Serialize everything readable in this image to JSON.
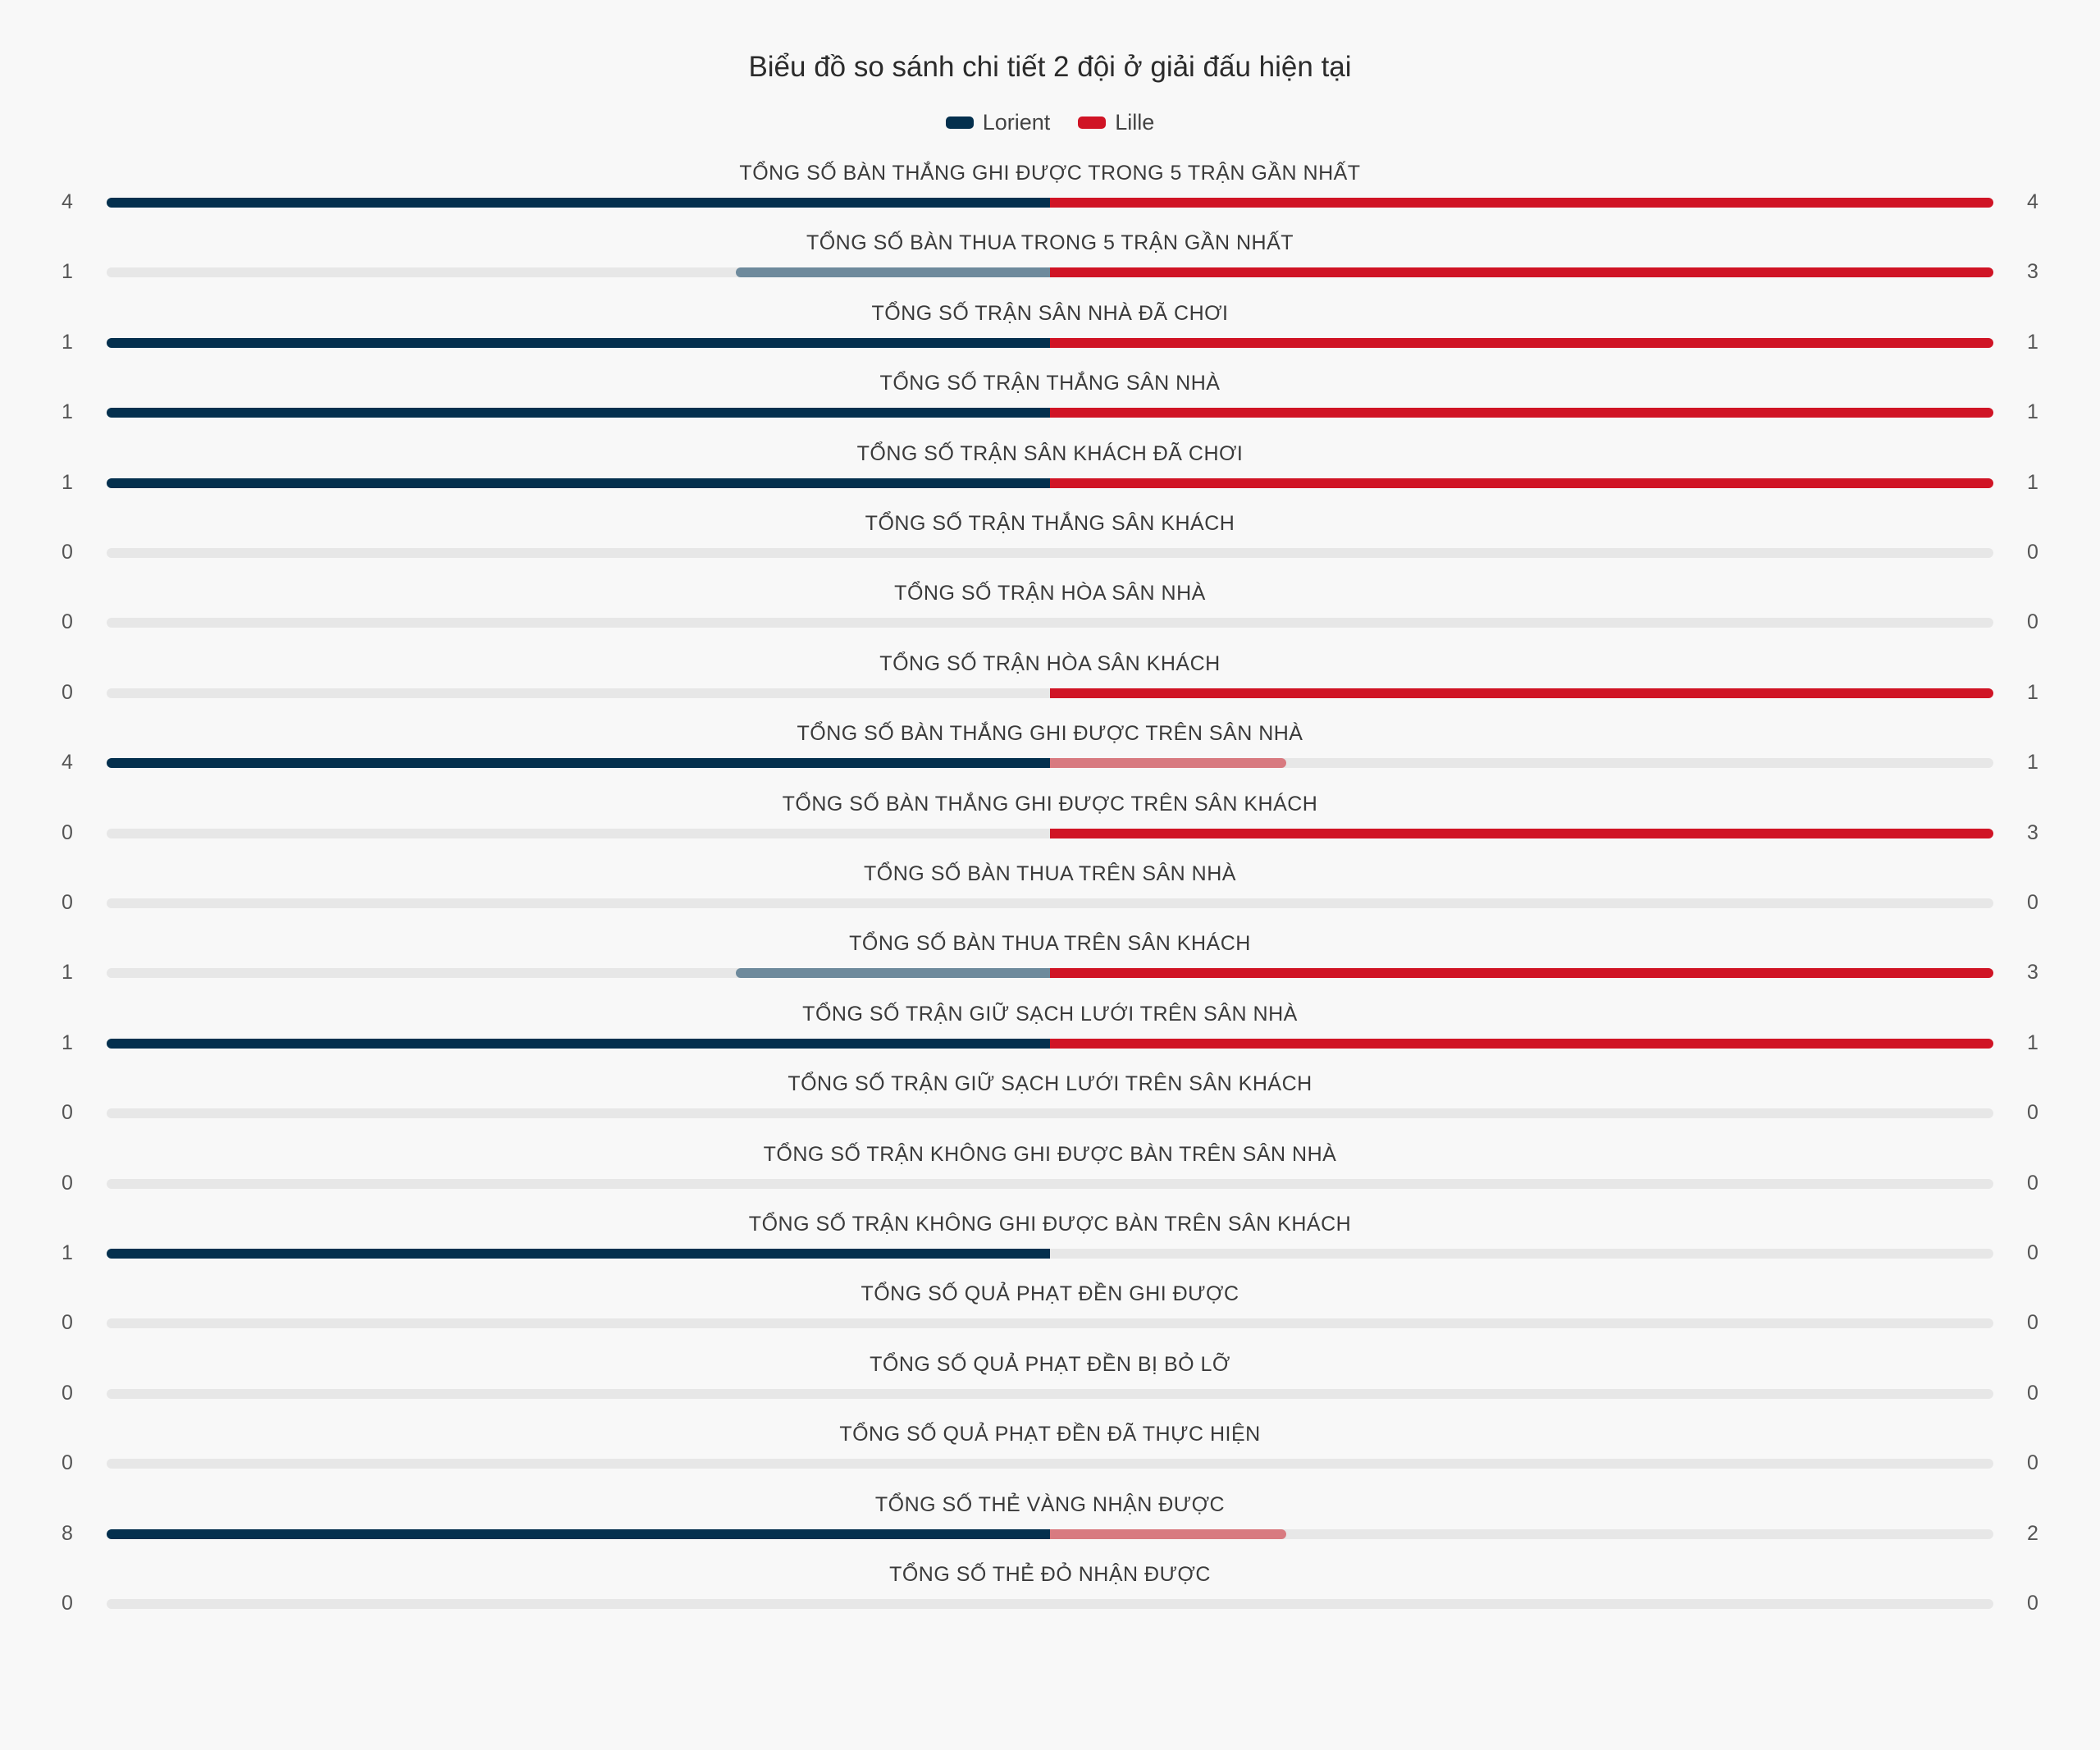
{
  "chart_data": {
    "type": "diverging-bar",
    "title": "Biểu đồ so sánh chi tiết 2 đội ở giải đấu hiện tại",
    "series": [
      {
        "name": "Lorient",
        "color": "#04304e",
        "color_lesser": "#6e8a9c"
      },
      {
        "name": "Lille",
        "color": "#d01425",
        "color_lesser": "#d87a80"
      }
    ],
    "track_color": "#e7e7e7",
    "categories": [
      "TỔNG SỐ BÀN THẮNG GHI ĐƯỢC TRONG 5 TRẬN GẦN NHẤT",
      "TỔNG SỐ BÀN THUA TRONG 5 TRẬN GẦN NHẤT",
      "TỔNG SỐ TRẬN SÂN NHÀ ĐÃ CHƠI",
      "TỔNG SỐ TRẬN THẮNG SÂN NHÀ",
      "TỔNG SỐ TRẬN SÂN KHÁCH ĐÃ CHƠI",
      "TỔNG SỐ TRẬN THẮNG SÂN KHÁCH",
      "TỔNG SỐ TRẬN HÒA SÂN NHÀ",
      "TỔNG SỐ TRẬN HÒA SÂN KHÁCH",
      "TỔNG SỐ BÀN THẮNG GHI ĐƯỢC TRÊN SÂN NHÀ",
      "TỔNG SỐ BÀN THẮNG GHI ĐƯỢC TRÊN SÂN KHÁCH",
      "TỔNG SỐ BÀN THUA TRÊN SÂN NHÀ",
      "TỔNG SỐ BÀN THUA TRÊN SÂN KHÁCH",
      "TỔNG SỐ TRẬN GIỮ SẠCH LƯỚI TRÊN SÂN NHÀ",
      "TỔNG SỐ TRẬN GIỮ SẠCH LƯỚI TRÊN SÂN KHÁCH",
      "TỔNG SỐ TRẬN KHÔNG GHI ĐƯỢC BÀN TRÊN SÂN NHÀ",
      "TỔNG SỐ TRẬN KHÔNG GHI ĐƯỢC BÀN TRÊN SÂN KHÁCH",
      "TỔNG SỐ QUẢ PHẠT ĐỀN GHI ĐƯỢC",
      "TỔNG SỐ QUẢ PHẠT ĐỀN BỊ BỎ LỠ",
      "TỔNG SỐ QUẢ PHẠT ĐỀN ĐÃ THỰC HIỆN",
      "TỔNG SỐ THẺ VÀNG NHẬN ĐƯỢC",
      "TỔNG SỐ THẺ ĐỎ NHẬN ĐƯỢC"
    ],
    "values_left": [
      4,
      1,
      1,
      1,
      1,
      0,
      0,
      0,
      4,
      0,
      0,
      1,
      1,
      0,
      0,
      1,
      0,
      0,
      0,
      8,
      0
    ],
    "values_right": [
      4,
      3,
      1,
      1,
      1,
      0,
      0,
      1,
      1,
      3,
      0,
      3,
      1,
      0,
      0,
      0,
      0,
      0,
      0,
      2,
      0
    ]
  }
}
